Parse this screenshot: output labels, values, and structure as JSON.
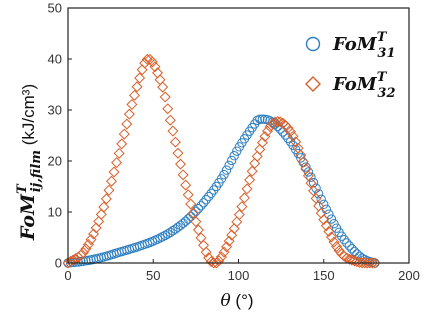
{
  "chart_data": {
    "type": "scatter",
    "title": "",
    "xlabel": {
      "symbol": "θ",
      "unit": " (°)"
    },
    "ylabel": {
      "base": "FoM",
      "sup": "T",
      "sub": "ij,film",
      "unit": " (kJ/cm³)"
    },
    "xlim": [
      0,
      200
    ],
    "ylim": [
      0,
      50
    ],
    "xticks": [
      0,
      50,
      100,
      150,
      200
    ],
    "yticks": [
      0,
      10,
      20,
      30,
      40,
      50
    ],
    "xtick_labels": [
      "0",
      "50",
      "100",
      "150",
      "200"
    ],
    "ytick_labels": [
      "0",
      "10",
      "20",
      "30",
      "40",
      "50"
    ],
    "grid": false,
    "legend_position": "top-right",
    "series": [
      {
        "name": "FoM_31^T",
        "legend": {
          "base": "FoM",
          "sup": "T",
          "sub": "31"
        },
        "marker": "circle",
        "color": "#2e7fc0",
        "x": [
          0,
          10,
          20,
          30,
          40,
          50,
          60,
          70,
          80,
          90,
          100,
          110,
          112,
          120,
          130,
          140,
          150,
          160,
          170,
          175,
          180
        ],
        "y": [
          0,
          0.4,
          1.1,
          2.1,
          3.1,
          4.3,
          6.0,
          8.5,
          12.0,
          16.5,
          22.5,
          27.5,
          28.2,
          27.6,
          24.0,
          18.5,
          11.5,
          5.5,
          1.6,
          0.5,
          0
        ]
      },
      {
        "name": "FoM_32^T",
        "legend": {
          "base": "FoM",
          "sup": "T",
          "sub": "32"
        },
        "marker": "diamond",
        "color": "#d95f2a",
        "x": [
          0,
          10,
          20,
          30,
          40,
          47,
          55,
          60,
          70,
          80,
          85,
          90,
          100,
          110,
          120,
          130,
          140,
          150,
          160,
          170,
          175,
          180
        ],
        "y": [
          0,
          2.5,
          10.0,
          21.5,
          34.0,
          40.0,
          35.0,
          28.0,
          14.0,
          3.0,
          0,
          1.2,
          9.0,
          20.0,
          27.3,
          26.0,
          18.0,
          8.5,
          2.0,
          0.2,
          0,
          0
        ]
      }
    ]
  }
}
